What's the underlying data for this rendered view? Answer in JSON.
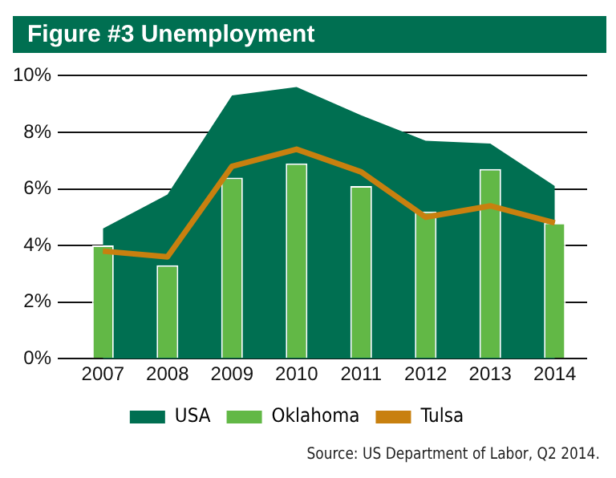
{
  "chart_data": {
    "type": "bar",
    "title": "Figure #3 Unemployment",
    "categories": [
      "2007",
      "2008",
      "2009",
      "2010",
      "2011",
      "2012",
      "2013",
      "2014"
    ],
    "series": [
      {
        "name": "USA",
        "type": "area",
        "color": "#006f51",
        "values": [
          4.6,
          5.8,
          9.3,
          9.6,
          8.6,
          7.7,
          7.6,
          6.1
        ]
      },
      {
        "name": "Oklahoma",
        "color": "#62b846",
        "values": [
          4.0,
          3.3,
          6.4,
          6.9,
          6.1,
          5.2,
          6.7,
          4.8
        ]
      },
      {
        "name": "Tulsa",
        "type": "line",
        "color": "#c8800f",
        "values": [
          3.8,
          3.6,
          6.8,
          7.4,
          6.6,
          5.0,
          5.4,
          4.8
        ]
      }
    ],
    "ylim": [
      0,
      10
    ],
    "yticks": [
      {
        "value": 0,
        "label": "0%"
      },
      {
        "value": 2,
        "label": "2%"
      },
      {
        "value": 4,
        "label": "4%"
      },
      {
        "value": 6,
        "label": "6%"
      },
      {
        "value": 8,
        "label": "8%"
      },
      {
        "value": 10,
        "label": "10%"
      }
    ],
    "grid": "y",
    "legend": "bottom",
    "marker": "none",
    "annotations": [
      "Source: US Department of Labor, Q2 2014."
    ]
  }
}
